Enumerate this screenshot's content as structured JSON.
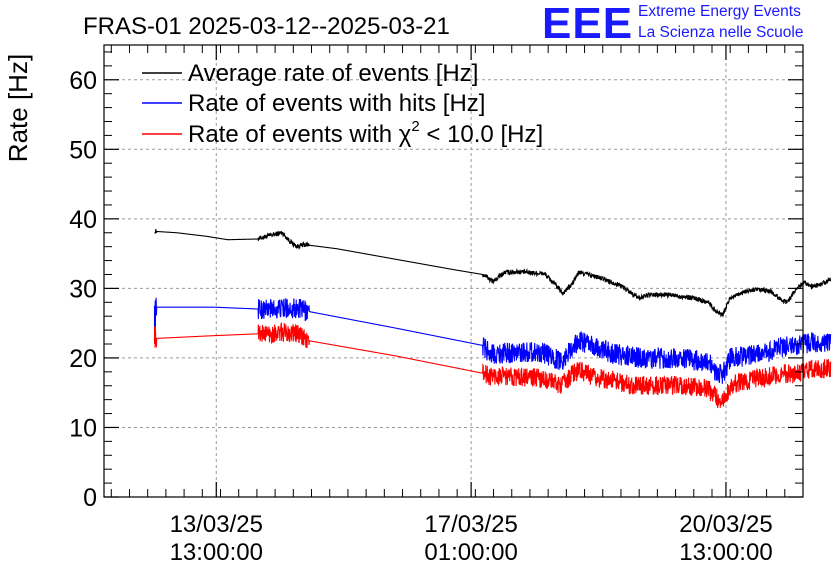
{
  "logo": {
    "mark": "EEE",
    "line1": "Extreme Energy Events",
    "line2": "La Scienza nelle Scuole",
    "color": "#1a1aff"
  },
  "chart_data": {
    "type": "line",
    "title": "FRAS-01 2025-03-12--2025-03-21",
    "xlabel": "",
    "ylabel": "Rate [Hz]",
    "ylim": [
      0,
      65
    ],
    "yticks": [
      0,
      10,
      20,
      30,
      40,
      50,
      60
    ],
    "x_unit": "days since 2025-03-12 00:00",
    "xlim": [
      0,
      9.6
    ],
    "xticks": [
      {
        "x": 1.542,
        "line1": "13/03/25",
        "line2": "13:00:00"
      },
      {
        "x": 5.042,
        "line1": "17/03/25",
        "line2": "01:00:00"
      },
      {
        "x": 8.542,
        "line1": "20/03/25",
        "line2": "13:00:00"
      }
    ],
    "grid": true,
    "legend_position": "top-left",
    "series": [
      {
        "name": "Average rate of events [Hz]",
        "color": "#000000",
        "noise": 0.35,
        "segments": [
          [
            [
              0.7,
              38.2
            ],
            [
              1.0,
              38.0
            ],
            [
              1.4,
              37.5
            ],
            [
              1.7,
              37.0
            ],
            [
              2.1,
              37.1
            ],
            [
              2.35,
              37.8
            ],
            [
              2.45,
              38.0
            ],
            [
              2.55,
              36.8
            ],
            [
              2.65,
              36.0
            ],
            [
              2.75,
              36.3
            ],
            [
              3.2,
              35.7
            ],
            [
              4.0,
              34.2
            ],
            [
              4.8,
              32.7
            ],
            [
              5.2,
              32.0
            ],
            [
              5.35,
              31.0
            ],
            [
              5.5,
              32.3
            ],
            [
              5.7,
              32.4
            ],
            [
              6.05,
              32.1
            ],
            [
              6.2,
              30.5
            ],
            [
              6.3,
              29.3
            ],
            [
              6.42,
              30.5
            ],
            [
              6.52,
              32.3
            ],
            [
              6.62,
              32.1
            ],
            [
              6.9,
              31.2
            ],
            [
              7.1,
              30.4
            ],
            [
              7.25,
              29.3
            ],
            [
              7.35,
              28.6
            ],
            [
              7.45,
              29.0
            ],
            [
              7.7,
              29.1
            ],
            [
              7.9,
              28.9
            ],
            [
              8.1,
              28.6
            ],
            [
              8.3,
              28.0
            ],
            [
              8.42,
              26.6
            ],
            [
              8.5,
              26.3
            ],
            [
              8.6,
              28.6
            ],
            [
              8.75,
              29.4
            ],
            [
              8.95,
              29.8
            ],
            [
              9.15,
              29.6
            ],
            [
              9.3,
              28.4
            ],
            [
              9.38,
              28.0
            ],
            [
              9.5,
              29.8
            ],
            [
              9.62,
              31.0
            ],
            [
              9.72,
              30.2
            ],
            [
              9.85,
              30.6
            ],
            [
              9.98,
              31.3
            ]
          ]
        ]
      },
      {
        "name": "Rate of events with hits [Hz]",
        "color": "#0000ff",
        "noise": 1.5,
        "segments": [
          [
            [
              0.7,
              27.4
            ],
            [
              0.7,
              27.3
            ],
            [
              1.5,
              27.3
            ],
            [
              2.2,
              27.0
            ],
            [
              2.6,
              27.2
            ],
            [
              2.8,
              26.7
            ],
            [
              4.0,
              24.3
            ],
            [
              5.2,
              21.8
            ],
            [
              5.3,
              20.6
            ],
            [
              5.7,
              20.8
            ],
            [
              6.0,
              20.9
            ],
            [
              6.2,
              19.8
            ],
            [
              6.3,
              19.7
            ],
            [
              6.45,
              21.8
            ],
            [
              6.55,
              22.5
            ],
            [
              6.7,
              21.7
            ],
            [
              7.0,
              20.6
            ],
            [
              7.2,
              20.2
            ],
            [
              7.5,
              19.9
            ],
            [
              8.0,
              19.9
            ],
            [
              8.3,
              19.3
            ],
            [
              8.45,
              17.6
            ],
            [
              8.5,
              17.6
            ],
            [
              8.6,
              20.0
            ],
            [
              8.85,
              20.3
            ],
            [
              9.1,
              20.6
            ],
            [
              9.3,
              21.6
            ],
            [
              9.5,
              21.6
            ],
            [
              9.7,
              22.1
            ],
            [
              9.98,
              22.0
            ]
          ]
        ],
        "startcap": {
          "x": 0.7,
          "ymin": 24.5,
          "ymax": 27.5
        }
      },
      {
        "name": "Rate of events with χ² < 10.0 [Hz]",
        "color": "#ff0000",
        "noise": 1.4,
        "segments": [
          [
            [
              0.7,
              22.8
            ],
            [
              1.5,
              23.2
            ],
            [
              2.2,
              23.5
            ],
            [
              2.6,
              23.7
            ],
            [
              2.8,
              22.5
            ],
            [
              4.0,
              20.3
            ],
            [
              5.2,
              17.8
            ],
            [
              5.3,
              17.4
            ],
            [
              5.7,
              17.3
            ],
            [
              6.0,
              17.1
            ],
            [
              6.2,
              16.4
            ],
            [
              6.3,
              16.2
            ],
            [
              6.45,
              17.9
            ],
            [
              6.55,
              18.2
            ],
            [
              6.7,
              17.2
            ],
            [
              7.0,
              16.8
            ],
            [
              7.2,
              16.2
            ],
            [
              7.5,
              16.0
            ],
            [
              8.0,
              16.0
            ],
            [
              8.3,
              15.5
            ],
            [
              8.45,
              13.9
            ],
            [
              8.5,
              13.8
            ],
            [
              8.6,
              16.0
            ],
            [
              8.85,
              16.8
            ],
            [
              9.1,
              17.2
            ],
            [
              9.3,
              17.8
            ],
            [
              9.5,
              17.6
            ],
            [
              9.7,
              18.3
            ],
            [
              9.98,
              18.5
            ]
          ]
        ],
        "startcap": {
          "x": 0.7,
          "ymin": 22.0,
          "ymax": 24.5
        }
      }
    ],
    "gaps": [
      [
        0.72,
        2.12
      ],
      [
        2.82,
        5.2
      ]
    ],
    "legend": [
      {
        "label": "Average rate of events [Hz]",
        "color": "#000000",
        "text": "Average rate of events [Hz]"
      },
      {
        "label": "Rate of events with hits [Hz]",
        "color": "#0000ff",
        "text": "Rate of events with hits [Hz]"
      },
      {
        "label": "Rate of events with χ2 < 10.0 [Hz]",
        "color": "#ff0000",
        "text_before": "Rate of events with χ",
        "sup": "2",
        "text_after": " < 10.0 [Hz]"
      }
    ]
  }
}
